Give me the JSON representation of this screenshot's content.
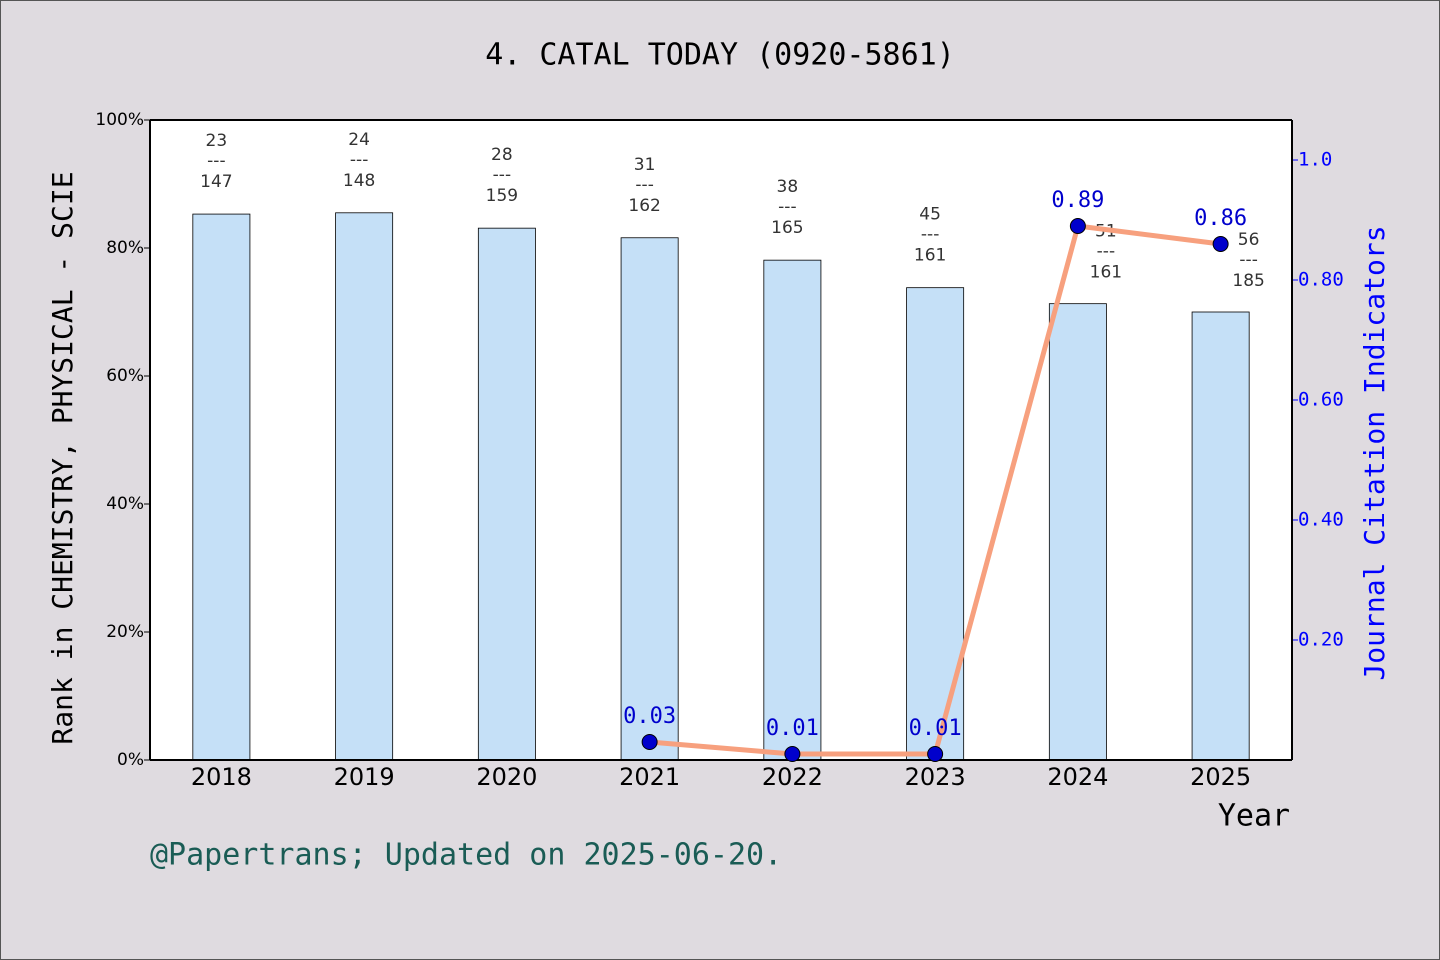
{
  "chart_data": {
    "type": "bar",
    "title": "4. CATAL TODAY (0920-5861)",
    "x_label": "Year",
    "y_label": "Rank in CHEMISTRY, PHYSICAL - SCIE",
    "y2_label": "Journal Citation Indicators",
    "footer": "@Papertrans; Updated on 2025-06-20.",
    "categories": [
      "2018",
      "2019",
      "2020",
      "2021",
      "2022",
      "2023",
      "2024",
      "2025"
    ],
    "ylim": [
      0,
      100
    ],
    "yticks": [
      {
        "value": 0,
        "label": "0%"
      },
      {
        "value": 20,
        "label": "20%"
      },
      {
        "value": 40,
        "label": "40%"
      },
      {
        "value": 60,
        "label": "60%"
      },
      {
        "value": 80,
        "label": "80%"
      },
      {
        "value": 100,
        "label": "100%"
      }
    ],
    "y2lim": [
      0,
      1.0667
    ],
    "y2ticks": [
      {
        "value": 0.2,
        "label": "0.20"
      },
      {
        "value": 0.4,
        "label": "0.40"
      },
      {
        "value": 0.6,
        "label": "0.60"
      },
      {
        "value": 0.8,
        "label": "0.80"
      },
      {
        "value": 1.0,
        "label": "1.0"
      }
    ],
    "ranks": [
      23,
      24,
      28,
      31,
      38,
      45,
      51,
      56
    ],
    "totals": [
      147,
      148,
      159,
      162,
      165,
      161,
      161,
      185
    ],
    "rank_separator": "---",
    "series": [
      {
        "type": "bar",
        "color": "#c5e0f7",
        "values": [
          85.3,
          85.5,
          83.1,
          81.6,
          78.1,
          73.8,
          71.3,
          70.0
        ]
      },
      {
        "type": "line",
        "axis": "y2",
        "color": "#f7a07e",
        "marker_color": "#0000cc",
        "values": [
          null,
          null,
          null,
          0.03,
          0.01,
          0.01,
          0.89,
          0.86
        ]
      }
    ]
  }
}
